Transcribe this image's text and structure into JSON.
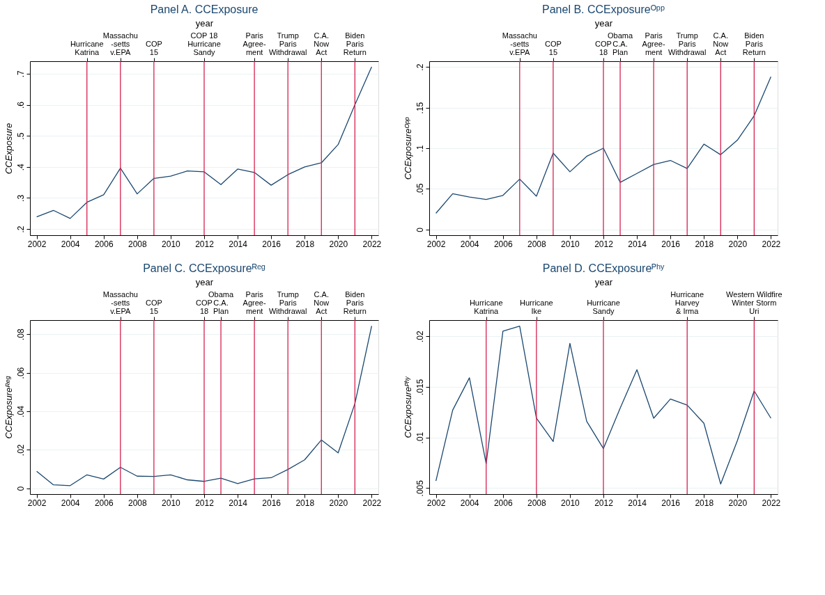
{
  "chart_data": [
    {
      "type": "line",
      "title": "Panel A. CCExposure",
      "ylabel": "CCExposure",
      "x2label": "year",
      "grid": "y",
      "legend": false,
      "marker": "none",
      "line_style": "solid",
      "x": [
        2002,
        2003,
        2004,
        2005,
        2006,
        2007,
        2008,
        2009,
        2010,
        2011,
        2012,
        2013,
        2014,
        2015,
        2016,
        2017,
        2018,
        2019,
        2020,
        2021,
        2022
      ],
      "series": [
        {
          "color": "#1a476f",
          "values": [
            0.239,
            0.26,
            0.234,
            0.286,
            0.31,
            0.396,
            0.313,
            0.363,
            0.37,
            0.387,
            0.384,
            0.343,
            0.393,
            0.382,
            0.341,
            0.375,
            0.4,
            0.413,
            0.472,
            0.6,
            0.722
          ]
        }
      ],
      "xlim": [
        2001.6,
        2022.4
      ],
      "xticks": [
        2002,
        2004,
        2006,
        2008,
        2010,
        2012,
        2014,
        2016,
        2018,
        2020,
        2022
      ],
      "ylim": [
        0.18,
        0.74
      ],
      "yticks": [
        {
          "value": 0.2,
          "label": ".2"
        },
        {
          "value": 0.3,
          "label": ".3"
        },
        {
          "value": 0.4,
          "label": ".4"
        },
        {
          "value": 0.5,
          "label": ".5"
        },
        {
          "value": 0.6,
          "label": ".6"
        },
        {
          "value": 0.7,
          "label": ".7"
        }
      ],
      "ref_lines": [
        {
          "axis": "x",
          "value": 2005,
          "label": "Hurricane\nKatrina",
          "color": "#d6204f"
        },
        {
          "axis": "x",
          "value": 2007,
          "label": "Massachu\n-setts\nv.EPA",
          "color": "#d6204f"
        },
        {
          "axis": "x",
          "value": 2009,
          "label": "COP\n15",
          "color": "#d6204f"
        },
        {
          "axis": "x",
          "value": 2012,
          "label": "COP 18\nHurricane\nSandy",
          "color": "#d6204f"
        },
        {
          "axis": "x",
          "value": 2015,
          "label": "Paris\nAgree-\nment",
          "color": "#d6204f"
        },
        {
          "axis": "x",
          "value": 2017,
          "label": "Trump\nParis\nWithdrawal",
          "color": "#d6204f"
        },
        {
          "axis": "x",
          "value": 2019,
          "label": "C.A.\nNow\nAct",
          "color": "#d6204f"
        },
        {
          "axis": "x",
          "value": 2021,
          "label": "Biden\nParis\nReturn",
          "color": "#d6204f"
        }
      ]
    },
    {
      "type": "line",
      "title": "Panel B. CCExposureᴼᵖᵖ",
      "ylabel": "CCExposureᴼᵖᵖ",
      "x2label": "year",
      "grid": "y",
      "legend": false,
      "marker": "none",
      "line_style": "solid",
      "x": [
        2002,
        2003,
        2004,
        2005,
        2006,
        2007,
        2008,
        2009,
        2010,
        2011,
        2012,
        2013,
        2014,
        2015,
        2016,
        2017,
        2018,
        2019,
        2020,
        2021,
        2022
      ],
      "series": [
        {
          "color": "#1a476f",
          "values": [
            0.02,
            0.044,
            0.04,
            0.037,
            0.042,
            0.062,
            0.041,
            0.094,
            0.071,
            0.09,
            0.1,
            0.058,
            0.069,
            0.08,
            0.085,
            0.075,
            0.105,
            0.092,
            0.11,
            0.14,
            0.188
          ]
        }
      ],
      "xlim": [
        2001.6,
        2022.4
      ],
      "xticks": [
        2002,
        2004,
        2006,
        2008,
        2010,
        2012,
        2014,
        2016,
        2018,
        2020,
        2022
      ],
      "ylim": [
        -0.007,
        0.207
      ],
      "yticks": [
        0,
        {
          "value": 0.05,
          "label": ".05"
        },
        {
          "value": 0.1,
          "label": ".1"
        },
        {
          "value": 0.15,
          "label": ".15"
        },
        {
          "value": 0.2,
          "label": ".2"
        }
      ],
      "ref_lines": [
        {
          "axis": "x",
          "value": 2007,
          "label": "Massachu\n-setts\nv.EPA",
          "color": "#d6204f"
        },
        {
          "axis": "x",
          "value": 2009,
          "label": "COP\n15",
          "color": "#d6204f"
        },
        {
          "axis": "x",
          "value": 2012,
          "label": "COP\n18",
          "color": "#d6204f"
        },
        {
          "axis": "x",
          "value": 2013,
          "label": "Obama\nC.A.\nPlan",
          "color": "#d6204f"
        },
        {
          "axis": "x",
          "value": 2015,
          "label": "Paris\nAgree-\nment",
          "color": "#d6204f"
        },
        {
          "axis": "x",
          "value": 2017,
          "label": "Trump\nParis\nWithdrawal",
          "color": "#d6204f"
        },
        {
          "axis": "x",
          "value": 2019,
          "label": "C.A.\nNow\nAct",
          "color": "#d6204f"
        },
        {
          "axis": "x",
          "value": 2021,
          "label": "Biden\nParis\nReturn",
          "color": "#d6204f"
        }
      ]
    },
    {
      "type": "line",
      "title": "Panel C. CCExposureᴿᵉᵍ",
      "ylabel": "CCExposureᴿᵉᵍ",
      "x2label": "year",
      "grid": "y",
      "legend": false,
      "marker": "none",
      "line_style": "solid",
      "x": [
        2002,
        2003,
        2004,
        2005,
        2006,
        2007,
        2008,
        2009,
        2010,
        2011,
        2012,
        2013,
        2014,
        2015,
        2016,
        2017,
        2018,
        2019,
        2020,
        2021,
        2022
      ],
      "series": [
        {
          "color": "#1a476f",
          "values": [
            0.0088,
            0.0018,
            0.0014,
            0.007,
            0.0048,
            0.0109,
            0.0063,
            0.0062,
            0.007,
            0.0044,
            0.0036,
            0.0053,
            0.0025,
            0.0049,
            0.0055,
            0.0098,
            0.0148,
            0.0251,
            0.0184,
            0.044,
            0.0843
          ]
        }
      ],
      "xlim": [
        2001.6,
        2022.4
      ],
      "xticks": [
        2002,
        2004,
        2006,
        2008,
        2010,
        2012,
        2014,
        2016,
        2018,
        2020,
        2022
      ],
      "ylim": [
        -0.003,
        0.0873
      ],
      "yticks": [
        0,
        {
          "value": 0.02,
          "label": ".02"
        },
        {
          "value": 0.04,
          "label": ".04"
        },
        {
          "value": 0.06,
          "label": ".06"
        },
        {
          "value": 0.08,
          "label": ".08"
        }
      ],
      "ref_lines": [
        {
          "axis": "x",
          "value": 2007,
          "label": "Massachu\n-setts\nv.EPA",
          "color": "#d6204f"
        },
        {
          "axis": "x",
          "value": 2009,
          "label": "COP\n15",
          "color": "#d6204f"
        },
        {
          "axis": "x",
          "value": 2012,
          "label": "COP\n18",
          "color": "#d6204f"
        },
        {
          "axis": "x",
          "value": 2013,
          "label": "Obama\nC.A.\nPlan",
          "color": "#d6204f"
        },
        {
          "axis": "x",
          "value": 2015,
          "label": "Paris\nAgree-\nment",
          "color": "#d6204f"
        },
        {
          "axis": "x",
          "value": 2017,
          "label": "Trump\nParis\nWithdrawal",
          "color": "#d6204f"
        },
        {
          "axis": "x",
          "value": 2019,
          "label": "C.A.\nNow\nAct",
          "color": "#d6204f"
        },
        {
          "axis": "x",
          "value": 2021,
          "label": "Biden\nParis\nReturn",
          "color": "#d6204f"
        }
      ]
    },
    {
      "type": "line",
      "title": "Panel D. CCExposureᴾʰʸ",
      "ylabel": "CCExposureᴾʰʸ",
      "x2label": "year",
      "grid": "y",
      "legend": false,
      "marker": "none",
      "line_style": "solid",
      "x": [
        2002,
        2003,
        2004,
        2005,
        2006,
        2007,
        2008,
        2009,
        2010,
        2011,
        2012,
        2013,
        2014,
        2015,
        2016,
        2017,
        2018,
        2019,
        2020,
        2021,
        2022
      ],
      "series": [
        {
          "color": "#1a476f",
          "values": [
            0.0057,
            0.0127,
            0.0159,
            0.0074,
            0.0205,
            0.021,
            0.0119,
            0.0096,
            0.0193,
            0.0116,
            0.0089,
            0.0129,
            0.0167,
            0.0119,
            0.0138,
            0.0132,
            0.0114,
            0.0054,
            0.0097,
            0.0146,
            0.0119
          ]
        }
      ],
      "xlim": [
        2001.6,
        2022.4
      ],
      "xticks": [
        2002,
        2004,
        2006,
        2008,
        2010,
        2012,
        2014,
        2016,
        2018,
        2020,
        2022
      ],
      "ylim": [
        0.0044,
        0.0216
      ],
      "yticks": [
        {
          "value": 0.005,
          "label": ".005"
        },
        {
          "value": 0.01,
          "label": ".01"
        },
        {
          "value": 0.015,
          "label": ".015"
        },
        {
          "value": 0.02,
          "label": ".02"
        }
      ],
      "ref_lines": [
        {
          "axis": "x",
          "value": 2005,
          "label": "Hurricane\nKatrina",
          "color": "#d6204f"
        },
        {
          "axis": "x",
          "value": 2008,
          "label": "Hurricane\nIke",
          "color": "#d6204f"
        },
        {
          "axis": "x",
          "value": 2012,
          "label": "Hurricane\nSandy",
          "color": "#d6204f"
        },
        {
          "axis": "x",
          "value": 2017,
          "label": "Hurricane\nHarvey\n& Irma",
          "color": "#d6204f"
        },
        {
          "axis": "x",
          "value": 2021,
          "label": "Western Wildfire\nWinter Storm\nUri",
          "color": "#d6204f"
        }
      ]
    }
  ]
}
